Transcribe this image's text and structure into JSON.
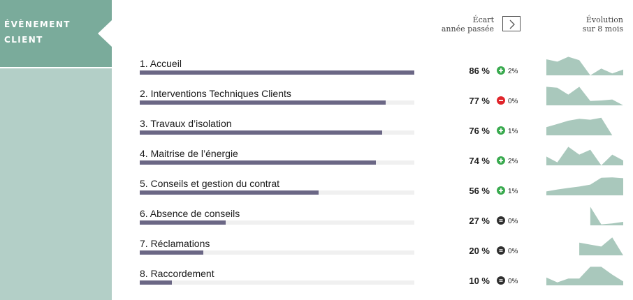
{
  "sidebar": {
    "title_line1": "ÉVÈNEMENT",
    "title_line2": "CLIENT"
  },
  "header": {
    "ecart_line1": "Écart",
    "ecart_line2": "année passée",
    "evolution_line1": "Évolution",
    "evolution_line2": "sur 8 mois",
    "next_icon": "chevron-right-icon"
  },
  "colors": {
    "sidebar_dark": "#7aab9b",
    "sidebar_light": "#b3cfc7",
    "bar": "#6b6785",
    "sparkline": "#a9c8bc",
    "up": "#3aaa4f",
    "down": "#e0252b",
    "flat": "#2f2f2f"
  },
  "rows": [
    {
      "label": "1. Accueil",
      "score": 86,
      "pct_text": "86 %",
      "trend": "up",
      "delta": "2%",
      "spark": [
        0.82,
        0.7,
        0.95,
        0.78,
        0,
        0.35,
        0.1,
        0.3
      ]
    },
    {
      "label": "2. Interventions Techniques Clients",
      "score": 77,
      "pct_text": "77 %",
      "trend": "down",
      "delta": "0%",
      "spark": [
        0.95,
        0.9,
        0.55,
        0.95,
        0.22,
        0.25,
        0.3,
        0
      ]
    },
    {
      "label": "3. Travaux d’isolation",
      "score": 76,
      "pct_text": "76 %",
      "trend": "up",
      "delta": "1%",
      "spark": [
        0.42,
        0.58,
        0.75,
        0.85,
        0.8,
        0.9,
        0,
        null
      ]
    },
    {
      "label": "4. Maitrise de l’énergie",
      "score": 74,
      "pct_text": "74 %",
      "trend": "up",
      "delta": "2%",
      "spark": [
        0.45,
        0.15,
        0.95,
        0.55,
        0.8,
        0,
        0.55,
        0.25
      ]
    },
    {
      "label": "5. Conseils et gestion du contrat",
      "score": 56,
      "pct_text": "56 %",
      "trend": "up",
      "delta": "1%",
      "spark": [
        0.2,
        0.3,
        0.38,
        0.45,
        0.55,
        0.9,
        0.92,
        0.88
      ]
    },
    {
      "label": "6. Absence de conseils",
      "score": 27,
      "pct_text": "27 %",
      "trend": "flat",
      "delta": "0%",
      "spark": [
        null,
        null,
        null,
        null,
        0.95,
        0.05,
        0.1,
        0.18
      ]
    },
    {
      "label": "7. Réclamations",
      "score": 20,
      "pct_text": "20 %",
      "trend": "flat",
      "delta": "0%",
      "spark": [
        null,
        null,
        null,
        0.65,
        0.55,
        0.45,
        0.92,
        0
      ]
    },
    {
      "label": "8. Raccordement",
      "score": 10,
      "pct_text": "10 %",
      "trend": "flat",
      "delta": "0%",
      "spark": [
        0.4,
        0.15,
        0.35,
        0.35,
        0.95,
        0.95,
        0.55,
        0.2
      ]
    }
  ]
}
